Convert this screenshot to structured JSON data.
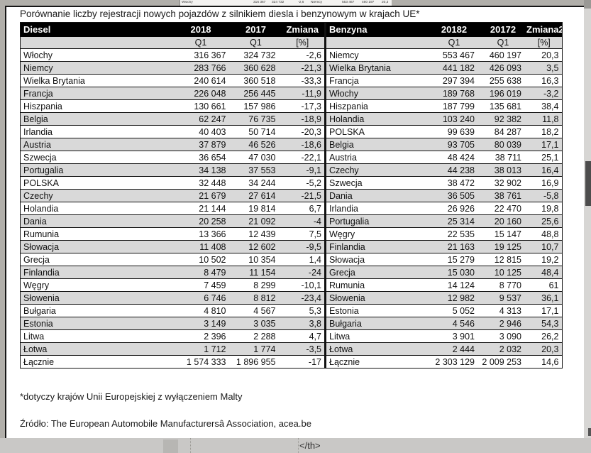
{
  "page": {
    "title": "Porównanie liczby rejestracji nowych pojazdów z silnikiem diesla i benzynowym w krajach UE*",
    "footnote": "*dotyczy krajów Unii Europejskiej z wyłączeniem Malty",
    "source": "Źródło: The European Automobile Manufacturersâ Association, acea.be",
    "bottom_bar_text": "</th>"
  },
  "top_preview": {
    "items": [
      "Włochy",
      "316 367",
      "324 732",
      "-2,6",
      "Niemcy",
      "553 467",
      "460 197",
      "20,3"
    ]
  },
  "colors": {
    "header_bg": "#000000",
    "header_text": "#ffffff",
    "row_alt": "#d9d9d9",
    "frame_gray": "#b1afaa",
    "bottom_bar": "#c9c8c6",
    "scroll_thumb": "#4d4d4d"
  },
  "diesel_table": {
    "header": {
      "label": "Diesel",
      "col_2018": "2018",
      "col_2017": "2017",
      "col_change": "Zmiana"
    },
    "subheader": {
      "q1a": "Q1",
      "q1b": "Q1",
      "pct": "[%]"
    },
    "rows": [
      {
        "country": "Włochy",
        "q1_2018": "316 367",
        "q1_2017": "324 732",
        "change": "-2,6"
      },
      {
        "country": "Niemcy",
        "q1_2018": "283 766",
        "q1_2017": "360 628",
        "change": "-21,3"
      },
      {
        "country": "Wielka Brytania",
        "q1_2018": "240 614",
        "q1_2017": "360 518",
        "change": "-33,3"
      },
      {
        "country": "Francja",
        "q1_2018": "226 048",
        "q1_2017": "256 445",
        "change": "-11,9"
      },
      {
        "country": "Hiszpania",
        "q1_2018": "130 661",
        "q1_2017": "157 986",
        "change": "-17,3"
      },
      {
        "country": "Belgia",
        "q1_2018": "62 247",
        "q1_2017": "76 735",
        "change": "-18,9"
      },
      {
        "country": "Irlandia",
        "q1_2018": "40 403",
        "q1_2017": "50 714",
        "change": "-20,3"
      },
      {
        "country": "Austria",
        "q1_2018": "37 879",
        "q1_2017": "46 526",
        "change": "-18,6"
      },
      {
        "country": "Szwecja",
        "q1_2018": "36 654",
        "q1_2017": "47 030",
        "change": "-22,1"
      },
      {
        "country": "Portugalia",
        "q1_2018": "34 138",
        "q1_2017": "37 553",
        "change": "-9,1"
      },
      {
        "country": "POLSKA",
        "q1_2018": "32 448",
        "q1_2017": "34 244",
        "change": "-5,2"
      },
      {
        "country": "Czechy",
        "q1_2018": "21 679",
        "q1_2017": "27 614",
        "change": "-21,5"
      },
      {
        "country": "Holandia",
        "q1_2018": "21 144",
        "q1_2017": "19 814",
        "change": "6,7"
      },
      {
        "country": "Dania",
        "q1_2018": "20 258",
        "q1_2017": "21 092",
        "change": "-4"
      },
      {
        "country": "Rumunia",
        "q1_2018": "13 366",
        "q1_2017": "12 439",
        "change": "7,5"
      },
      {
        "country": "Słowacja",
        "q1_2018": "11 408",
        "q1_2017": "12 602",
        "change": "-9,5"
      },
      {
        "country": "Grecja",
        "q1_2018": "10 502",
        "q1_2017": "10 354",
        "change": "1,4"
      },
      {
        "country": "Finlandia",
        "q1_2018": "8 479",
        "q1_2017": "11 154",
        "change": "-24"
      },
      {
        "country": "Węgry",
        "q1_2018": "7 459",
        "q1_2017": "8 299",
        "change": "-10,1"
      },
      {
        "country": "Słowenia",
        "q1_2018": "6 746",
        "q1_2017": "8 812",
        "change": "-23,4"
      },
      {
        "country": "Bułgaria",
        "q1_2018": "4 810",
        "q1_2017": "4 567",
        "change": "5,3"
      },
      {
        "country": "Estonia",
        "q1_2018": "3 149",
        "q1_2017": "3 035",
        "change": "3,8"
      },
      {
        "country": "Litwa",
        "q1_2018": "2 396",
        "q1_2017": "2 288",
        "change": "4,7"
      },
      {
        "country": "Łotwa",
        "q1_2018": "1 712",
        "q1_2017": "1 774",
        "change": "-3,5"
      }
    ],
    "total": {
      "country": "Łącznie",
      "q1_2018": "1 574 333",
      "q1_2017": "1 896 955",
      "change": "-17"
    }
  },
  "benzyna_table": {
    "header": {
      "label": "Benzyna",
      "col_2018": "20182",
      "col_2017": "20172",
      "col_change": "Zmiana2"
    },
    "subheader": {
      "q1a": "Q1",
      "q1b": "Q1",
      "pct": "[%]"
    },
    "rows": [
      {
        "country": "Niemcy",
        "q1_2018": "553 467",
        "q1_2017": "460 197",
        "change": "20,3"
      },
      {
        "country": "Wielka Brytania",
        "q1_2018": "441 182",
        "q1_2017": "426 093",
        "change": "3,5"
      },
      {
        "country": "Francja",
        "q1_2018": "297 394",
        "q1_2017": "255 638",
        "change": "16,3"
      },
      {
        "country": "Włochy",
        "q1_2018": "189 768",
        "q1_2017": "196 019",
        "change": "-3,2"
      },
      {
        "country": "Hiszpania",
        "q1_2018": "187 799",
        "q1_2017": "135 681",
        "change": "38,4"
      },
      {
        "country": "Holandia",
        "q1_2018": "103 240",
        "q1_2017": "92 382",
        "change": "11,8"
      },
      {
        "country": "POLSKA",
        "q1_2018": "99 639",
        "q1_2017": "84 287",
        "change": "18,2"
      },
      {
        "country": "Belgia",
        "q1_2018": "93 705",
        "q1_2017": "80 039",
        "change": "17,1"
      },
      {
        "country": "Austria",
        "q1_2018": "48 424",
        "q1_2017": "38 711",
        "change": "25,1"
      },
      {
        "country": "Czechy",
        "q1_2018": "44 238",
        "q1_2017": "38 013",
        "change": "16,4"
      },
      {
        "country": "Szwecja",
        "q1_2018": "38 472",
        "q1_2017": "32 902",
        "change": "16,9"
      },
      {
        "country": "Dania",
        "q1_2018": "36 505",
        "q1_2017": "38 761",
        "change": "-5,8"
      },
      {
        "country": "Irlandia",
        "q1_2018": "26 926",
        "q1_2017": "22 470",
        "change": "19,8"
      },
      {
        "country": "Portugalia",
        "q1_2018": "25 314",
        "q1_2017": "20 160",
        "change": "25,6"
      },
      {
        "country": "Węgry",
        "q1_2018": "22 535",
        "q1_2017": "15 147",
        "change": "48,8"
      },
      {
        "country": "Finlandia",
        "q1_2018": "21 163",
        "q1_2017": "19 125",
        "change": "10,7"
      },
      {
        "country": "Słowacja",
        "q1_2018": "15 279",
        "q1_2017": "12 815",
        "change": "19,2"
      },
      {
        "country": "Grecja",
        "q1_2018": "15 030",
        "q1_2017": "10 125",
        "change": "48,4"
      },
      {
        "country": "Rumunia",
        "q1_2018": "14 124",
        "q1_2017": "8 770",
        "change": "61"
      },
      {
        "country": "Słowenia",
        "q1_2018": "12 982",
        "q1_2017": "9 537",
        "change": "36,1"
      },
      {
        "country": "Estonia",
        "q1_2018": "5 052",
        "q1_2017": "4 313",
        "change": "17,1"
      },
      {
        "country": "Bułgaria",
        "q1_2018": "4 546",
        "q1_2017": "2 946",
        "change": "54,3"
      },
      {
        "country": "Litwa",
        "q1_2018": "3 901",
        "q1_2017": "3 090",
        "change": "26,2"
      },
      {
        "country": "Łotwa",
        "q1_2018": "2 444",
        "q1_2017": "2 032",
        "change": "20,3"
      }
    ],
    "total": {
      "country": "Łącznie",
      "q1_2018": "2 303 129",
      "q1_2017": "2 009 253",
      "change": "14,6"
    }
  }
}
